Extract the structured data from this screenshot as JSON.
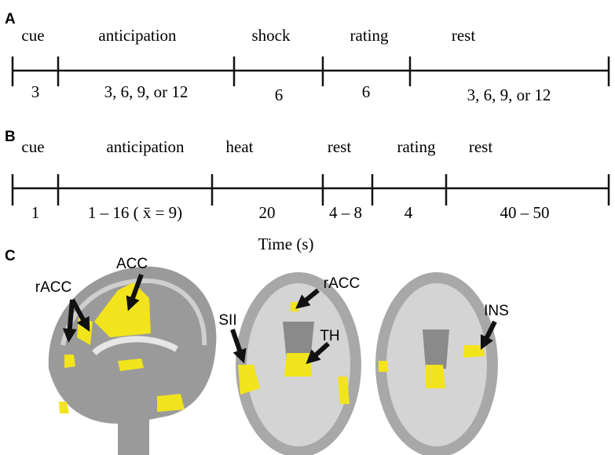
{
  "panels": [
    {
      "label": "A",
      "phases": [
        "cue",
        "anticipation",
        "shock",
        "rating",
        "rest"
      ],
      "durations": [
        "3",
        "3, 6, 9, or 12",
        "6",
        "6",
        "3, 6, 9, or 12"
      ]
    },
    {
      "label": "B",
      "phases": [
        "cue",
        "anticipation",
        "heat",
        "rest",
        "rating",
        "rest"
      ],
      "durations": [
        "1",
        "1 – 16 ( x̄ = 9)",
        "20",
        "4 – 8",
        "4",
        "40 – 50"
      ]
    }
  ],
  "axis_label": "Time (s)",
  "brain_panel": {
    "label": "C",
    "regions": [
      "ACC",
      "rACC",
      "SII",
      "rACC",
      "TH",
      "INS"
    ]
  }
}
